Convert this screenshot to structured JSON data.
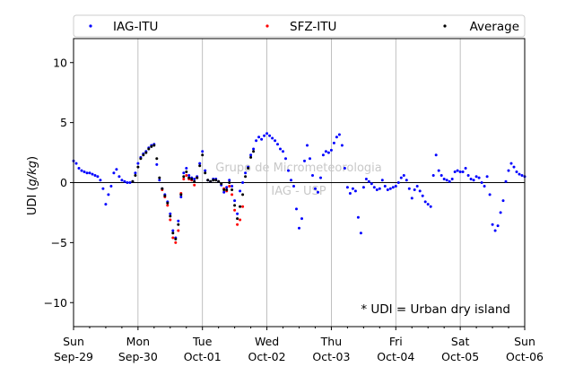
{
  "chart_data": {
    "type": "scatter",
    "ylabel": "UDI (g/kg)",
    "ylim": [
      -12,
      12
    ],
    "yticks": [
      -10,
      -5,
      0,
      5,
      10
    ],
    "xlim": [
      0,
      168
    ],
    "x_unit": "hours since 2024-09-29 00:00",
    "xticks": [
      {
        "x": 0,
        "day": "Sun",
        "date": "Sep-29"
      },
      {
        "x": 24,
        "day": "Mon",
        "date": "Sep-30"
      },
      {
        "x": 48,
        "day": "Tue",
        "date": "Oct-01"
      },
      {
        "x": 72,
        "day": "Wed",
        "date": "Oct-02"
      },
      {
        "x": 96,
        "day": "Thu",
        "date": "Oct-03"
      },
      {
        "x": 120,
        "day": "Fri",
        "date": "Oct-04"
      },
      {
        "x": 144,
        "day": "Sat",
        "date": "Oct-05"
      },
      {
        "x": 168,
        "day": "Sun",
        "date": "Oct-06"
      }
    ],
    "grid": "vertical",
    "zero_line": true,
    "legend_position": "top",
    "annotation": "* UDI = Urban dry island",
    "watermark": [
      "Grupo de Micrometeorologia",
      "IAG - USP"
    ],
    "series": [
      {
        "name": "IAG-ITU",
        "color": "#0000ff",
        "points": [
          [
            0,
            1.8
          ],
          [
            1,
            1.6
          ],
          [
            2,
            1.2
          ],
          [
            3,
            1.0
          ],
          [
            4,
            0.9
          ],
          [
            5,
            0.8
          ],
          [
            6,
            0.8
          ],
          [
            7,
            0.7
          ],
          [
            8,
            0.6
          ],
          [
            9,
            0.5
          ],
          [
            10,
            0.2
          ],
          [
            11,
            -0.5
          ],
          [
            12,
            -1.8
          ],
          [
            13,
            -1.0
          ],
          [
            14,
            -0.3
          ],
          [
            15,
            0.8
          ],
          [
            16,
            1.1
          ],
          [
            17,
            0.5
          ],
          [
            18,
            0.2
          ],
          [
            19,
            0.1
          ],
          [
            20,
            0.0
          ],
          [
            21,
            0.0
          ],
          [
            22,
            0.1
          ],
          [
            23,
            0.8
          ],
          [
            24,
            1.6
          ],
          [
            25,
            2.1
          ],
          [
            26,
            2.4
          ],
          [
            27,
            2.6
          ],
          [
            28,
            2.9
          ],
          [
            29,
            3.1
          ],
          [
            30,
            3.2
          ],
          [
            31,
            1.5
          ],
          [
            32,
            0.2
          ],
          [
            33,
            -0.5
          ],
          [
            34,
            -1.0
          ],
          [
            35,
            -1.6
          ],
          [
            36,
            -2.6
          ],
          [
            37,
            -4.0
          ],
          [
            38,
            -4.6
          ],
          [
            39,
            -3.2
          ],
          [
            40,
            -1.2
          ],
          [
            41,
            0.8
          ],
          [
            42,
            1.2
          ],
          [
            43,
            0.6
          ],
          [
            44,
            0.4
          ],
          [
            45,
            0.3
          ],
          [
            46,
            0.5
          ],
          [
            47,
            1.6
          ],
          [
            48,
            2.6
          ],
          [
            49,
            1.0
          ],
          [
            50,
            0.2
          ],
          [
            51,
            0.1
          ],
          [
            52,
            0.3
          ],
          [
            53,
            0.3
          ],
          [
            54,
            0.1
          ],
          [
            55,
            -0.2
          ],
          [
            56,
            -0.8
          ],
          [
            57,
            -0.4
          ],
          [
            58,
            0.2
          ],
          [
            59,
            -0.3
          ],
          [
            60,
            -1.5
          ],
          [
            61,
            -2.6
          ],
          [
            62,
            -0.7
          ],
          [
            63,
            0.0
          ],
          [
            64,
            0.8
          ],
          [
            65,
            1.3
          ],
          [
            66,
            2.3
          ],
          [
            67,
            2.8
          ],
          [
            68,
            3.5
          ],
          [
            69,
            3.8
          ],
          [
            70,
            3.6
          ],
          [
            71,
            3.9
          ],
          [
            72,
            4.1
          ],
          [
            73,
            3.9
          ],
          [
            74,
            3.7
          ],
          [
            75,
            3.5
          ],
          [
            76,
            3.2
          ],
          [
            77,
            2.8
          ],
          [
            78,
            2.6
          ],
          [
            79,
            2.0
          ],
          [
            80,
            1.0
          ],
          [
            81,
            0.2
          ],
          [
            82,
            -0.3
          ],
          [
            83,
            -2.2
          ],
          [
            84,
            -3.8
          ],
          [
            85,
            -3.0
          ],
          [
            86,
            1.8
          ],
          [
            87,
            3.1
          ],
          [
            88,
            2.0
          ],
          [
            89,
            0.6
          ],
          [
            90,
            -0.5
          ],
          [
            91,
            -0.8
          ],
          [
            92,
            0.4
          ],
          [
            93,
            2.3
          ],
          [
            94,
            2.6
          ],
          [
            95,
            2.5
          ],
          [
            96,
            2.7
          ],
          [
            97,
            3.3
          ],
          [
            98,
            3.8
          ],
          [
            99,
            4.0
          ],
          [
            100,
            3.1
          ],
          [
            101,
            1.2
          ],
          [
            102,
            -0.4
          ],
          [
            103,
            -0.9
          ],
          [
            104,
            -0.5
          ],
          [
            105,
            -0.7
          ],
          [
            106,
            -2.9
          ],
          [
            107,
            -4.2
          ],
          [
            108,
            -0.4
          ],
          [
            109,
            0.3
          ],
          [
            110,
            0.1
          ],
          [
            111,
            -0.1
          ],
          [
            112,
            -0.4
          ],
          [
            113,
            -0.6
          ],
          [
            114,
            -0.5
          ],
          [
            115,
            0.2
          ],
          [
            116,
            -0.3
          ],
          [
            117,
            -0.6
          ],
          [
            118,
            -0.5
          ],
          [
            119,
            -0.4
          ],
          [
            120,
            -0.3
          ],
          [
            121,
            0.0
          ],
          [
            122,
            0.4
          ],
          [
            123,
            0.6
          ],
          [
            124,
            0.2
          ],
          [
            125,
            -0.5
          ],
          [
            126,
            -1.3
          ],
          [
            127,
            -0.6
          ],
          [
            128,
            -0.3
          ],
          [
            129,
            -0.7
          ],
          [
            130,
            -1.1
          ],
          [
            131,
            -1.6
          ],
          [
            132,
            -1.8
          ],
          [
            133,
            -2.0
          ],
          [
            134,
            0.6
          ],
          [
            135,
            2.3
          ],
          [
            136,
            1.0
          ],
          [
            137,
            0.6
          ],
          [
            138,
            0.3
          ],
          [
            139,
            0.2
          ],
          [
            140,
            0.1
          ],
          [
            141,
            0.3
          ],
          [
            142,
            0.9
          ],
          [
            143,
            1.0
          ],
          [
            144,
            0.9
          ],
          [
            145,
            0.9
          ],
          [
            146,
            1.2
          ],
          [
            147,
            0.6
          ],
          [
            148,
            0.3
          ],
          [
            149,
            0.2
          ],
          [
            150,
            0.5
          ],
          [
            151,
            0.4
          ],
          [
            152,
            0.0
          ],
          [
            153,
            -0.3
          ],
          [
            154,
            0.5
          ],
          [
            155,
            -1.0
          ],
          [
            156,
            -3.5
          ],
          [
            157,
            -4.0
          ],
          [
            158,
            -3.6
          ],
          [
            159,
            -2.5
          ],
          [
            160,
            -1.5
          ],
          [
            161,
            0.1
          ],
          [
            162,
            1.0
          ],
          [
            163,
            1.6
          ],
          [
            164,
            1.3
          ],
          [
            165,
            0.9
          ],
          [
            166,
            0.7
          ],
          [
            167,
            0.6
          ],
          [
            168,
            0.5
          ]
        ]
      },
      {
        "name": "SFZ-ITU",
        "color": "#ff0000",
        "points": [
          [
            33,
            -0.6
          ],
          [
            34,
            -1.2
          ],
          [
            35,
            -1.9
          ],
          [
            36,
            -3.1
          ],
          [
            37,
            -4.6
          ],
          [
            38,
            -5.0
          ],
          [
            39,
            -4.0
          ],
          [
            40,
            -0.9
          ],
          [
            41,
            0.3
          ],
          [
            42,
            0.6
          ],
          [
            43,
            0.3
          ],
          [
            44,
            0.2
          ],
          [
            45,
            -0.2
          ],
          [
            46,
            0.4
          ],
          [
            56,
            -0.5
          ],
          [
            57,
            -0.7
          ],
          [
            58,
            -0.3
          ],
          [
            59,
            -1.0
          ],
          [
            60,
            -2.3
          ],
          [
            61,
            -3.5
          ],
          [
            62,
            -3.1
          ],
          [
            63,
            -2.0
          ]
        ]
      },
      {
        "name": "Average",
        "color": "#000000",
        "points": [
          [
            22,
            0.1
          ],
          [
            23,
            0.6
          ],
          [
            24,
            1.3
          ],
          [
            25,
            2.0
          ],
          [
            26,
            2.3
          ],
          [
            27,
            2.5
          ],
          [
            28,
            2.8
          ],
          [
            29,
            3.0
          ],
          [
            30,
            3.1
          ],
          [
            31,
            2.0
          ],
          [
            32,
            0.4
          ],
          [
            33,
            -0.5
          ],
          [
            34,
            -1.1
          ],
          [
            35,
            -1.7
          ],
          [
            36,
            -2.8
          ],
          [
            37,
            -4.2
          ],
          [
            38,
            -4.7
          ],
          [
            39,
            -3.5
          ],
          [
            40,
            -1.0
          ],
          [
            41,
            0.5
          ],
          [
            42,
            0.9
          ],
          [
            43,
            0.4
          ],
          [
            44,
            0.3
          ],
          [
            45,
            0.1
          ],
          [
            46,
            0.4
          ],
          [
            47,
            1.4
          ],
          [
            48,
            2.3
          ],
          [
            49,
            0.8
          ],
          [
            50,
            0.2
          ],
          [
            51,
            0.1
          ],
          [
            52,
            0.2
          ],
          [
            53,
            0.2
          ],
          [
            54,
            0.1
          ],
          [
            55,
            -0.1
          ],
          [
            56,
            -0.6
          ],
          [
            57,
            -0.6
          ],
          [
            58,
            0.0
          ],
          [
            59,
            -0.6
          ],
          [
            60,
            -1.9
          ],
          [
            61,
            -3.0
          ],
          [
            62,
            -2.0
          ],
          [
            63,
            -1.0
          ],
          [
            64,
            0.5
          ],
          [
            65,
            1.2
          ],
          [
            66,
            2.1
          ],
          [
            67,
            2.6
          ]
        ]
      }
    ]
  }
}
